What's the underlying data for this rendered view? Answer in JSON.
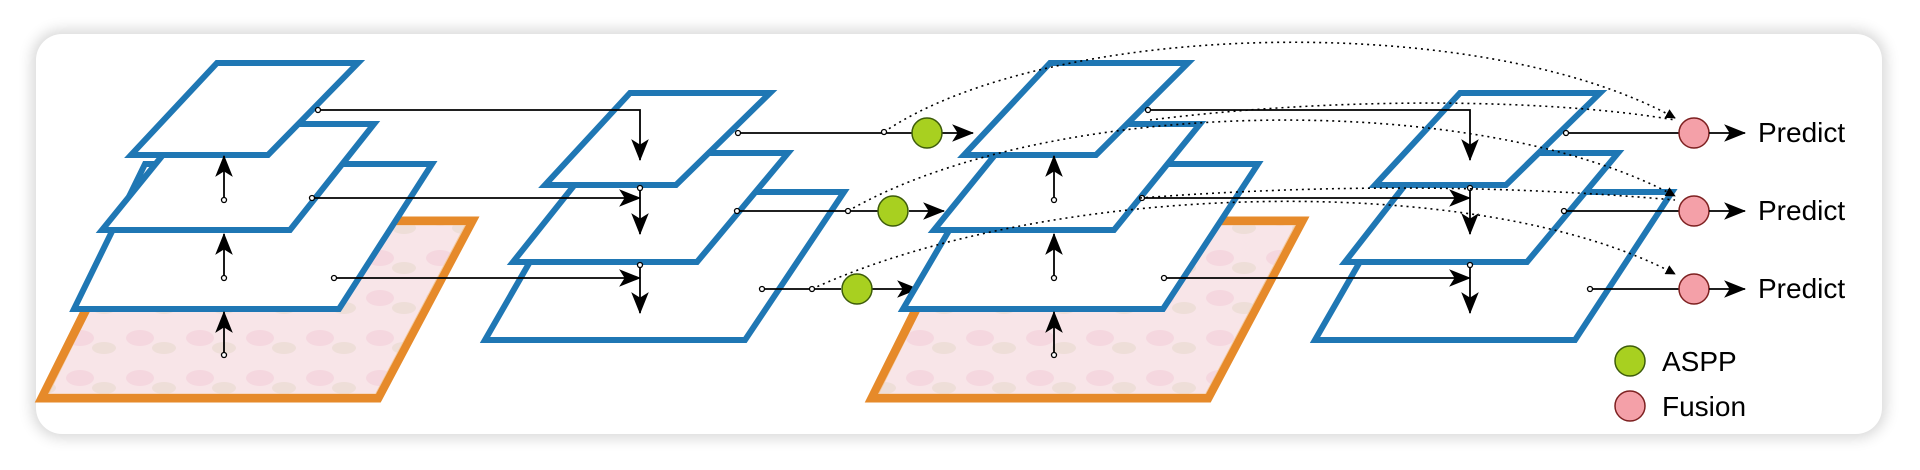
{
  "diagram": {
    "outputs": [
      {
        "label": "Predict"
      },
      {
        "label": "Predict"
      },
      {
        "label": "Predict"
      }
    ],
    "legend": [
      {
        "label": "ASPP",
        "color": "#a8d020"
      },
      {
        "label": "Fusion",
        "color": "#f4a0a8"
      }
    ],
    "colors": {
      "plane_border": "#1f77b4",
      "image_frame": "#e68a2a",
      "aspp": "#a8d020",
      "fusion": "#f4a0a8"
    }
  }
}
